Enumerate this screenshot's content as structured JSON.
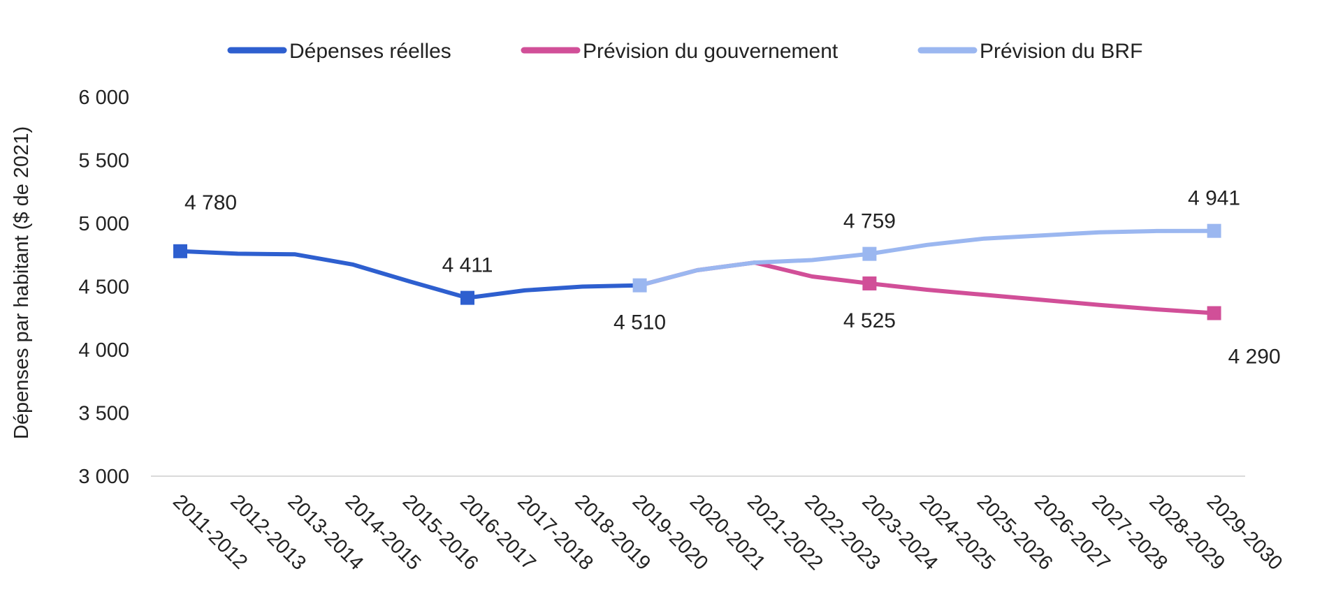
{
  "chart_data": {
    "type": "line",
    "ylabel": "Dépenses par habitant ($ de 2021)",
    "xlabel": "",
    "ylim": [
      3000,
      6000
    ],
    "yticks": [
      3000,
      3500,
      4000,
      4500,
      5000,
      5500,
      6000
    ],
    "ytick_labels": [
      "3 000",
      "3 500",
      "4 000",
      "4 500",
      "5 000",
      "5 500",
      "6 000"
    ],
    "grid": false,
    "legend_position": "top",
    "categories": [
      "2011-2012",
      "2012-2013",
      "2013-2014",
      "2014-2015",
      "2015-2016",
      "2016-2017",
      "2017-2018",
      "2018-2019",
      "2019-2020",
      "2020-2021",
      "2021-2022",
      "2022-2023",
      "2023-2024",
      "2024-2025",
      "2025-2026",
      "2026-2027",
      "2027-2028",
      "2028-2029",
      "2029-2030"
    ],
    "series": [
      {
        "name": "Dépenses réelles",
        "color": "#2e5fcf",
        "values": [
          4780,
          4760,
          4755,
          4675,
          4540,
          4411,
          4470,
          4500,
          4510,
          null,
          null,
          null,
          null,
          null,
          null,
          null,
          null,
          null,
          null
        ],
        "markers": [
          {
            "index": 0,
            "label": "4 780",
            "label_pos": "above-right"
          },
          {
            "index": 5,
            "label": "4 411",
            "label_pos": "above"
          }
        ]
      },
      {
        "name": "Prévision du gouvernement",
        "color": "#d14f98",
        "values": [
          null,
          null,
          null,
          null,
          null,
          null,
          null,
          null,
          4510,
          4630,
          4690,
          4580,
          4525,
          4475,
          4435,
          4395,
          4355,
          4320,
          4290
        ],
        "markers": [
          {
            "index": 12,
            "label": "4 525",
            "label_pos": "below"
          },
          {
            "index": 18,
            "label": "4 290",
            "label_pos": "below-right"
          }
        ]
      },
      {
        "name": "Prévision du BRF",
        "color": "#9bb7f0",
        "values": [
          null,
          null,
          null,
          null,
          null,
          null,
          null,
          null,
          4510,
          4630,
          4690,
          4710,
          4759,
          4830,
          4880,
          4905,
          4930,
          4940,
          4941
        ],
        "markers": [
          {
            "index": 8,
            "label": "4 510",
            "label_pos": "below"
          },
          {
            "index": 12,
            "label": "4 759",
            "label_pos": "above"
          },
          {
            "index": 18,
            "label": "4 941",
            "label_pos": "above"
          }
        ]
      }
    ]
  }
}
